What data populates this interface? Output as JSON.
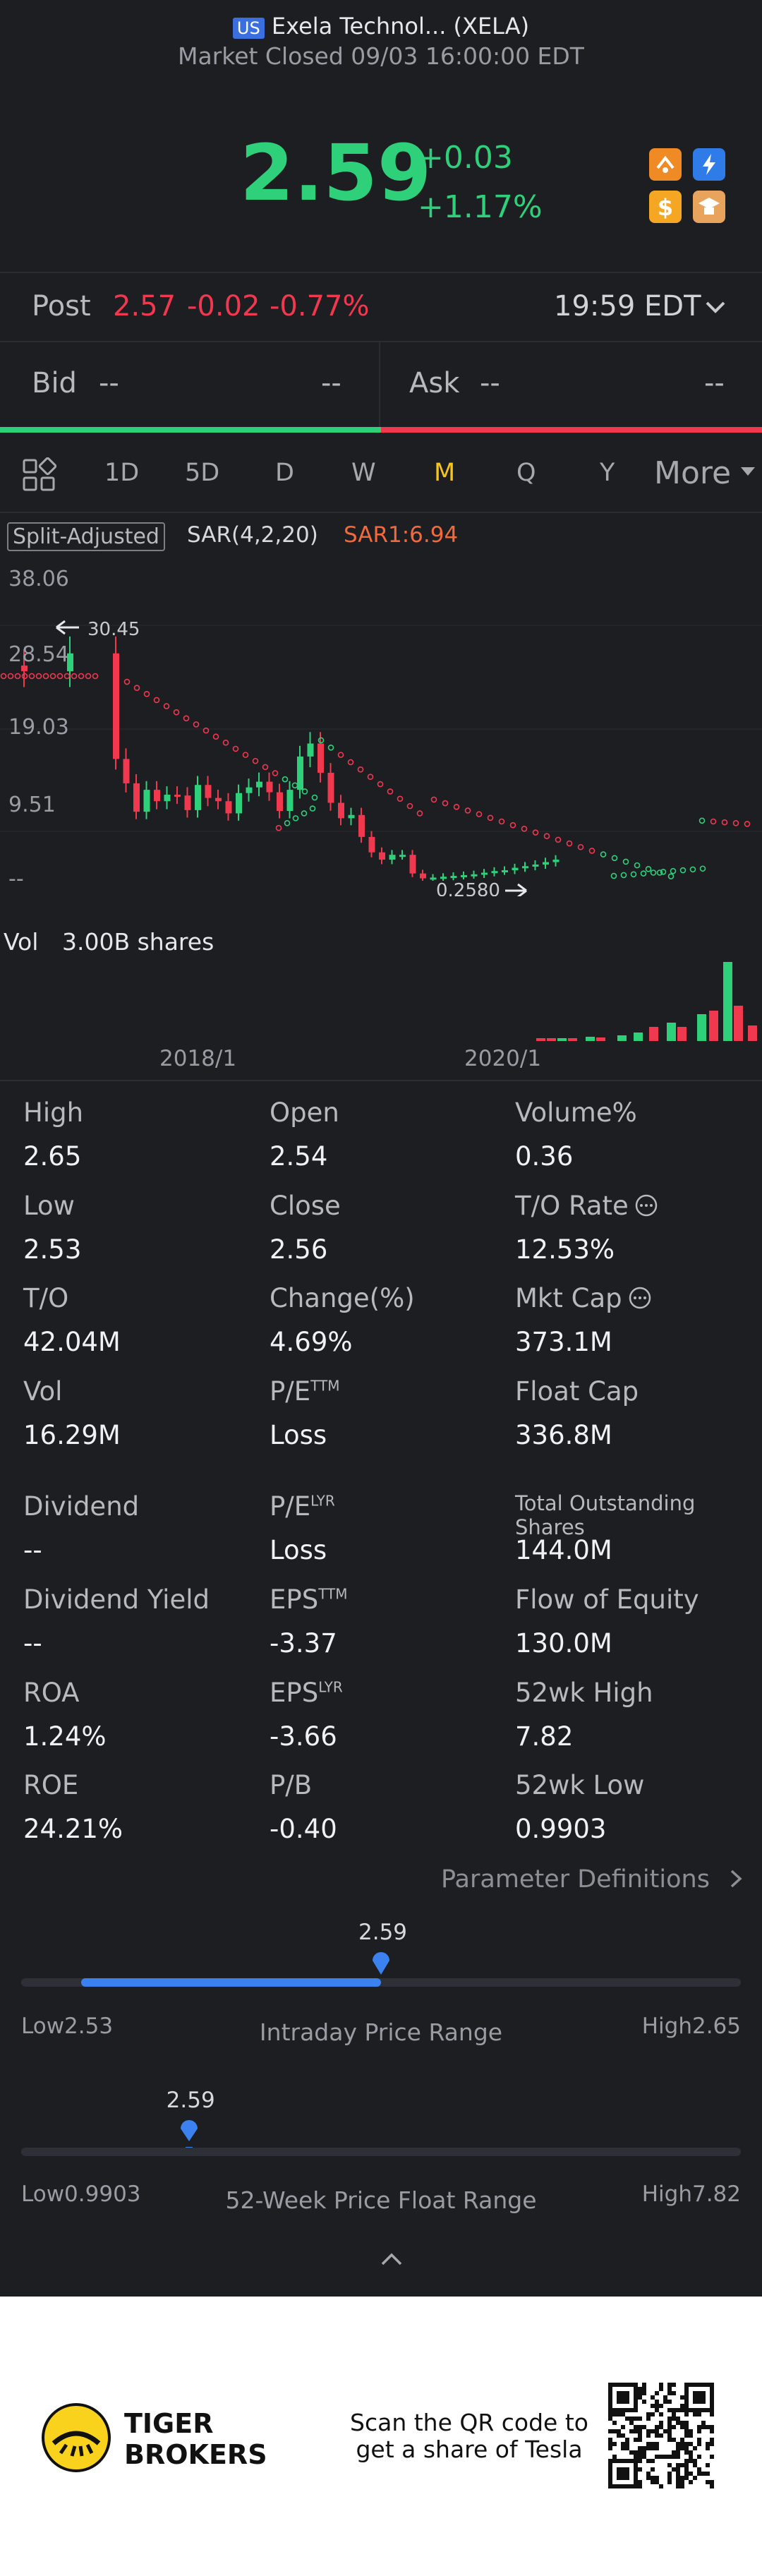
{
  "header": {
    "market_badge": "US",
    "title": "Exela Technol... (XELA)",
    "status": "Market Closed 09/03 16:00:00 EDT",
    "price": "2.59",
    "change": "+0.03",
    "change_pct": "+1.17%"
  },
  "post": {
    "label": "Post",
    "price": "2.57",
    "change": "-0.02",
    "change_pct": "-0.77%",
    "time": "19:59 EDT"
  },
  "quote": {
    "bid_label": "Bid",
    "bid_price": "--",
    "bid_size": "--",
    "ask_label": "Ask",
    "ask_price": "--",
    "ask_size": "--"
  },
  "tabs": [
    "1D",
    "5D",
    "D",
    "W",
    "M",
    "Q",
    "Y"
  ],
  "active_tab": "M",
  "more_label": "More",
  "chart": {
    "split_label": "Split-Adjusted",
    "indicator": "SAR(4,2,20)",
    "sar_value": "SAR1:6.94",
    "y_ticks": [
      "38.06",
      "28.54",
      "19.03",
      "9.51",
      "--"
    ],
    "high_marker": "30.45",
    "low_marker": "0.2580",
    "vol_label": "Vol",
    "vol_value": "3.00B shares",
    "x_ticks": [
      "2018/1",
      "2020/1"
    ]
  },
  "chart_data": {
    "type": "candlestick",
    "title": "",
    "ylim": [
      0,
      38.06
    ],
    "y_ticks": [
      38.06,
      28.54,
      19.03,
      9.51
    ],
    "x_ticks": [
      "2018/1",
      "2020/1"
    ],
    "marked_high": 30.45,
    "marked_low": 0.258,
    "sar_last": 6.94
  },
  "stats": [
    {
      "label": "High",
      "value": "2.65"
    },
    {
      "label": "Open",
      "value": "2.54"
    },
    {
      "label": "Volume%",
      "value": "0.36"
    },
    {
      "label": "Low",
      "value": "2.53"
    },
    {
      "label": "Close",
      "value": "2.56"
    },
    {
      "label": "T/O Rate",
      "value": "12.53%"
    },
    {
      "label": "T/O",
      "value": "42.04M"
    },
    {
      "label": "Change(%)",
      "value": "4.69%"
    },
    {
      "label": "Mkt Cap",
      "value": "373.1M"
    },
    {
      "label": "Vol",
      "value": "16.29M"
    },
    {
      "label": "P/E",
      "sup": "TTM",
      "value": "Loss"
    },
    {
      "label": "Float Cap",
      "value": "336.8M"
    },
    {
      "label": "Dividend",
      "value": "--"
    },
    {
      "label": "P/E",
      "sup": "LYR",
      "value": "Loss"
    },
    {
      "label": "Total Outstanding Shares",
      "value": "144.0M"
    },
    {
      "label": "Dividend Yield",
      "value": "--"
    },
    {
      "label": "EPS",
      "sup": "TTM",
      "value": "-3.37"
    },
    {
      "label": "Flow of Equity",
      "value": "130.0M"
    },
    {
      "label": "ROA",
      "value": "1.24%"
    },
    {
      "label": "EPS",
      "sup": "LYR",
      "value": "-3.66"
    },
    {
      "label": "52wk High",
      "value": "7.82"
    },
    {
      "label": "ROE",
      "value": "24.21%"
    },
    {
      "label": "P/B",
      "value": "-0.40"
    },
    {
      "label": "52wk Low",
      "value": "0.9903"
    }
  ],
  "param_link": "Parameter Definitions",
  "intraday": {
    "current": "2.59",
    "low_label": "Low",
    "low": "2.53",
    "title": "Intraday Price Range",
    "high_label": "High",
    "high": "2.65",
    "fraction": 0.5
  },
  "week52": {
    "current": "2.59",
    "low_label": "Low",
    "low": "0.9903",
    "title": "52-Week Price Float Range",
    "high_label": "High",
    "high": "7.82",
    "fraction": 0.233
  },
  "footer": {
    "brand_line1": "TIGER",
    "brand_line2": "BROKERS",
    "promo_line1": "Scan the QR code to",
    "promo_line2": "get a share of Tesla"
  },
  "colors": {
    "up": "#2fd07a",
    "down": "#f0384f",
    "accent": "#3b6fe0",
    "active_tab": "#f5c518"
  }
}
